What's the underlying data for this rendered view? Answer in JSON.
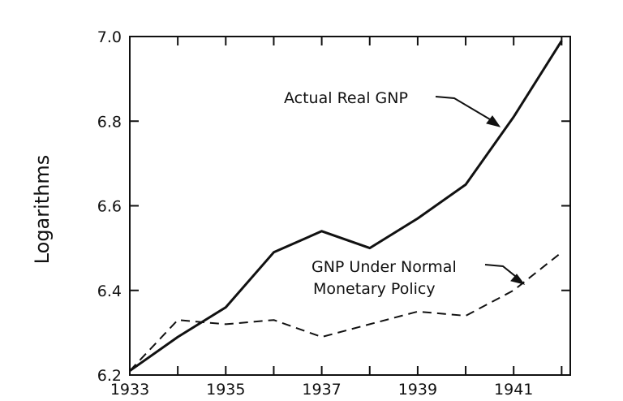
{
  "chart_data": {
    "type": "line",
    "ylabel": "Logarithms",
    "xlim": [
      1933,
      1942
    ],
    "ylim": [
      6.2,
      7.0
    ],
    "x_ticks": [
      1933,
      1934,
      1935,
      1936,
      1937,
      1938,
      1939,
      1940,
      1941,
      1942
    ],
    "x_tick_labels": [
      "1933",
      "1935",
      "1937",
      "1939",
      "1941"
    ],
    "y_tick_labels": [
      "6.2",
      "6.4",
      "6.6",
      "6.8",
      "7.0"
    ],
    "grid": false,
    "series": [
      {
        "name": "Actual Real GNP",
        "style": "solid",
        "x": [
          1933,
          1934,
          1935,
          1936,
          1937,
          1938,
          1939,
          1940,
          1941,
          1942
        ],
        "values": [
          6.21,
          6.29,
          6.36,
          6.49,
          6.54,
          6.5,
          6.57,
          6.65,
          6.81,
          6.99
        ]
      },
      {
        "name": "GNP Under Normal Monetary Policy",
        "style": "dashed",
        "x": [
          1933,
          1934,
          1935,
          1936,
          1937,
          1938,
          1939,
          1940,
          1941,
          1942
        ],
        "values": [
          6.21,
          6.33,
          6.32,
          6.33,
          6.29,
          6.32,
          6.35,
          6.34,
          6.4,
          6.49
        ]
      }
    ],
    "annotations": [
      {
        "line1": "Actual Real GNP",
        "line2": ""
      },
      {
        "line1": "GNP Under Normal",
        "line2": "Monetary Policy"
      }
    ],
    "colors": {
      "line": "#111111",
      "background": "#ffffff"
    }
  }
}
